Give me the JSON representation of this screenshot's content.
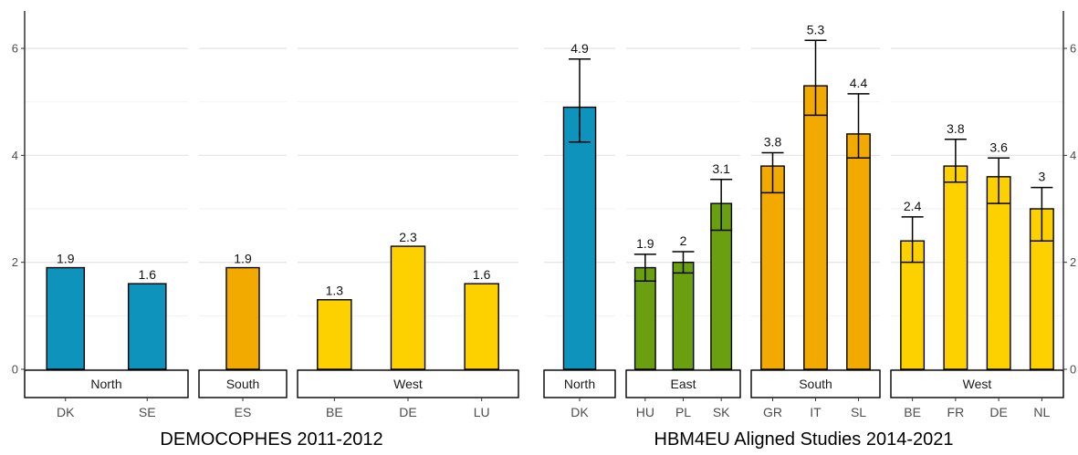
{
  "chart_data": [
    {
      "type": "bar",
      "title": "DEMOCOPHES 2011-2012",
      "ylim": [
        0,
        6.7
      ],
      "yticks": [
        0,
        2,
        4,
        6
      ],
      "y_axis_side": "left",
      "grid": "horizontal",
      "error_bars": false,
      "groups": [
        {
          "label": "North",
          "categories": [
            "DK",
            "SE"
          ],
          "values": [
            1.9,
            1.6
          ],
          "color": "#0e93bd"
        },
        {
          "label": "South",
          "categories": [
            "ES"
          ],
          "values": [
            1.9
          ],
          "color": "#f2a900"
        },
        {
          "label": "West",
          "categories": [
            "BE",
            "DE",
            "LU"
          ],
          "values": [
            1.3,
            2.3,
            1.6
          ],
          "color": "#fdd000"
        }
      ]
    },
    {
      "type": "bar",
      "title": "HBM4EU Aligned Studies 2014-2021",
      "ylim": [
        0,
        6.7
      ],
      "yticks": [
        0,
        2,
        4,
        6
      ],
      "y_axis_side": "right",
      "grid": "horizontal",
      "error_bars": true,
      "groups": [
        {
          "label": "North",
          "categories": [
            "DK"
          ],
          "values": [
            4.9
          ],
          "err_low": [
            4.25
          ],
          "err_high": [
            5.8
          ],
          "color": "#0e93bd"
        },
        {
          "label": "East",
          "categories": [
            "HU",
            "PL",
            "SK"
          ],
          "values": [
            1.9,
            2.0,
            3.1
          ],
          "value_labels": [
            "1.9",
            "2",
            "3.1"
          ],
          "err_low": [
            1.65,
            1.8,
            2.6
          ],
          "err_high": [
            2.15,
            2.2,
            3.55
          ],
          "color": "#6a9f10"
        },
        {
          "label": "South",
          "categories": [
            "GR",
            "IT",
            "SL"
          ],
          "values": [
            3.8,
            5.3,
            4.4
          ],
          "err_low": [
            3.3,
            4.75,
            3.95
          ],
          "err_high": [
            4.05,
            6.15,
            5.15
          ],
          "color": "#f2a900"
        },
        {
          "label": "West",
          "categories": [
            "BE",
            "FR",
            "DE",
            "NL"
          ],
          "values": [
            2.4,
            3.8,
            3.6,
            3.0
          ],
          "value_labels": [
            "2.4",
            "3.8",
            "3.6",
            "3"
          ],
          "err_low": [
            2.0,
            3.5,
            3.1,
            2.4
          ],
          "err_high": [
            2.85,
            4.3,
            3.95,
            3.4
          ],
          "color": "#fdd000"
        }
      ]
    }
  ]
}
